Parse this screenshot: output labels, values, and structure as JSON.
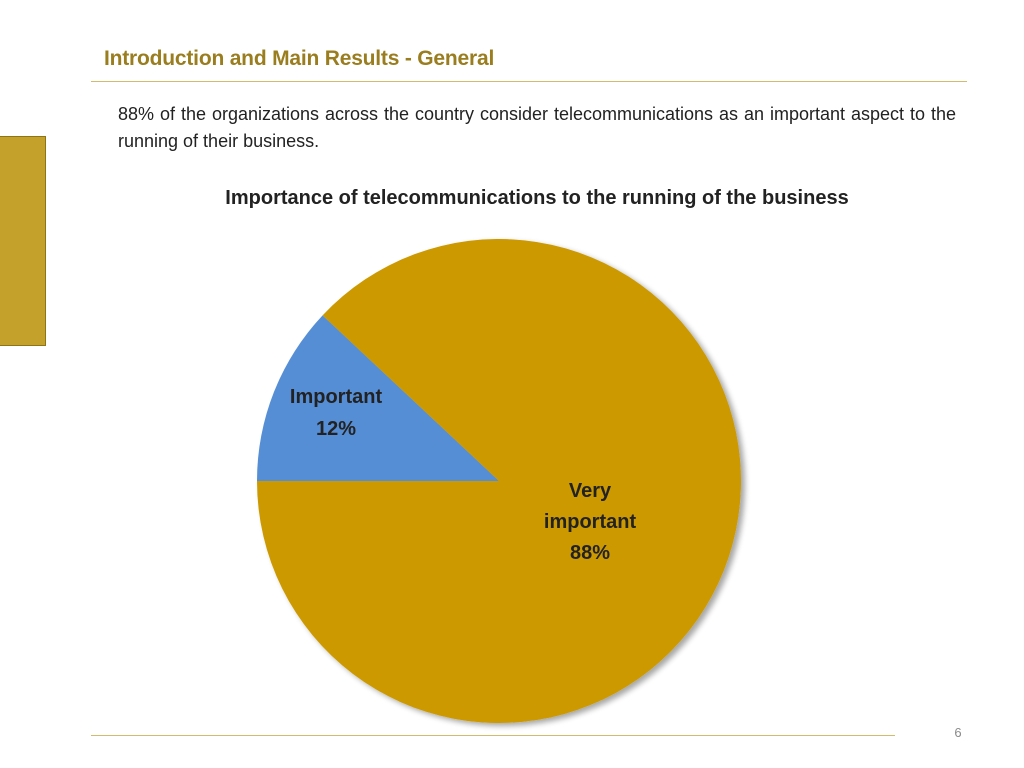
{
  "slide": {
    "title": "Introduction and Main Results - General",
    "intro_text": "88% of the organizations across the country consider telecommunications as an important aspect to the running of their business.",
    "page_number": "6"
  },
  "colors": {
    "title": "#9a7d1e",
    "accent_bar": "#c3a12b",
    "rule": "#d2bb6c",
    "very_important_slice": "#cc9900",
    "important_slice": "#558ed5"
  },
  "chart_data": {
    "type": "pie",
    "title": "Importance of telecommunications to the running of the business",
    "slices": [
      {
        "label": "Important",
        "value": 12,
        "value_label": "12%",
        "color": "#558ed5"
      },
      {
        "label": "Very important",
        "value": 88,
        "value_label": "88%",
        "color": "#cc9900"
      }
    ],
    "legend": "none",
    "data_labels": "inside"
  }
}
